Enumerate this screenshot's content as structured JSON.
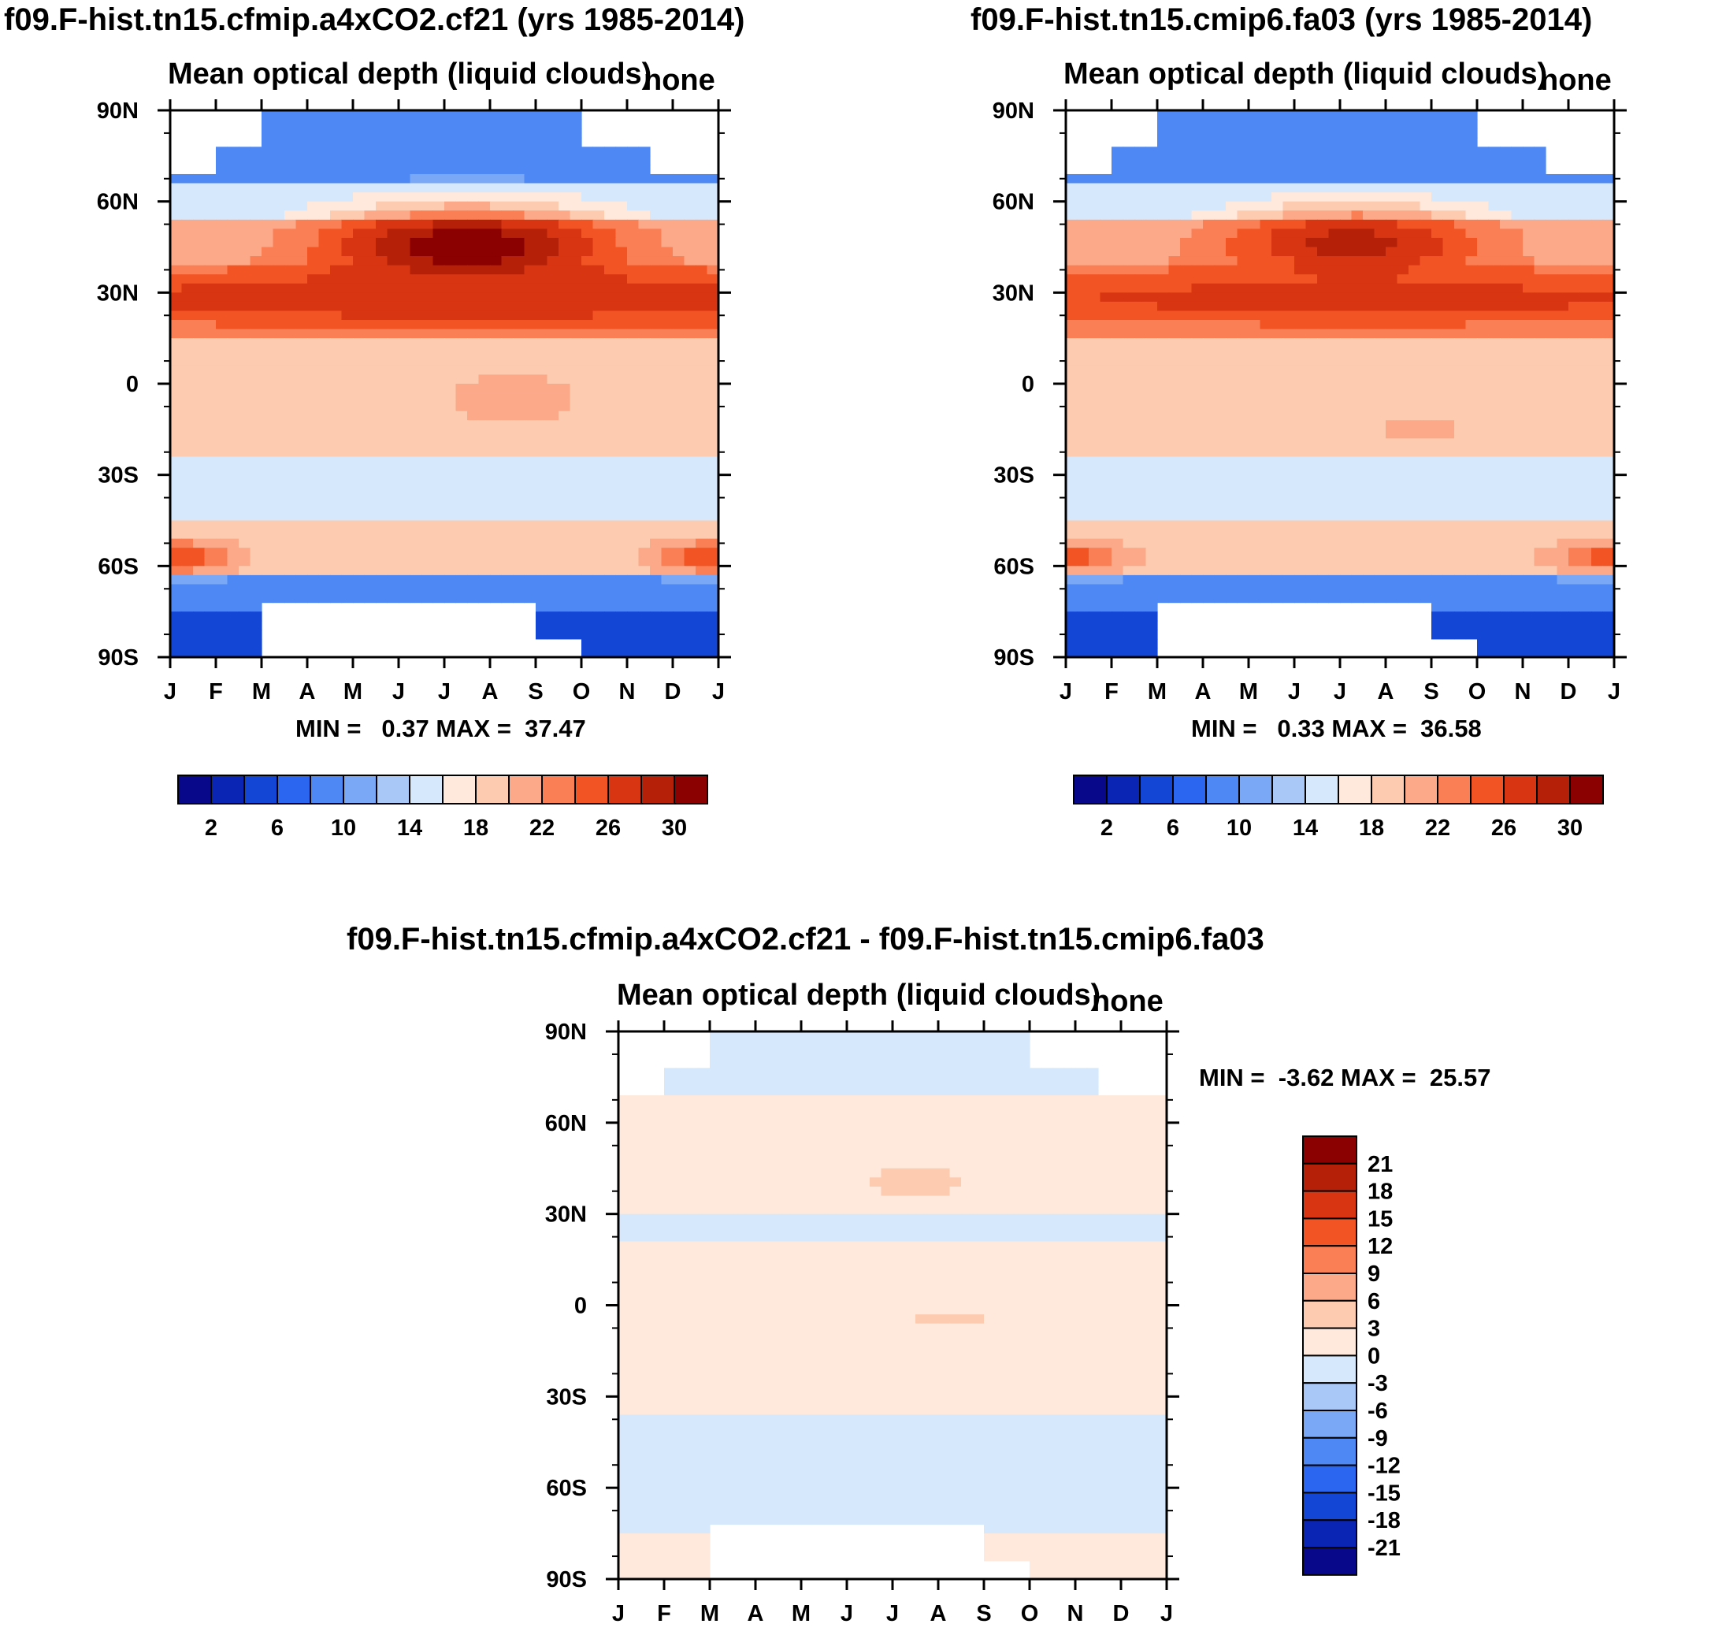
{
  "panels": [
    {
      "title": "f09.F-hist.tn15.cfmip.a4xCO2.cf21 (yrs 1985-2014)",
      "subtitle": "Mean optical depth (liquid clouds)",
      "units": "none",
      "minmax": "MIN =   0.37 MAX =  37.47"
    },
    {
      "title": "f09.F-hist.tn15.cmip6.fa03 (yrs 1985-2014)",
      "subtitle": "Mean optical depth (liquid clouds)",
      "units": "none",
      "minmax": "MIN =   0.33 MAX =  36.58"
    },
    {
      "title": "f09.F-hist.tn15.cfmip.a4xCO2.cf21 - f09.F-hist.tn15.cmip6.fa03",
      "subtitle": "Mean optical depth (liquid clouds)",
      "units": "none",
      "minmax": "MIN =  -3.62 MAX =  25.57"
    }
  ],
  "chart_data": [
    {
      "type": "heatmap",
      "title": "f09.F-hist.tn15.cfmip.a4xCO2.cf21 (yrs 1985-2014)",
      "x_ticks": [
        "J",
        "F",
        "M",
        "A",
        "M",
        "J",
        "J",
        "A",
        "S",
        "O",
        "N",
        "D",
        "J"
      ],
      "y_ticks": [
        "90N",
        "60N",
        "30N",
        "0",
        "30S",
        "60S",
        "90S"
      ],
      "levels": [
        2,
        4,
        6,
        8,
        10,
        12,
        14,
        16,
        18,
        20,
        22,
        24,
        26,
        28,
        30
      ],
      "colorbar_labels": [
        "2",
        "6",
        "10",
        "14",
        "18",
        "22",
        "26",
        "30"
      ],
      "min": 0.37,
      "max": 37.47,
      "features": [
        {
          "lat": 45,
          "month": 6.5,
          "value": 32,
          "lat_spread": 13,
          "month_spread": 3.2
        },
        {
          "lat": 28,
          "month": 6.5,
          "value": 28,
          "lat_spread": 9,
          "month_spread": 12
        },
        {
          "lat": -57,
          "month": 0,
          "value": 26,
          "lat_spread": 6,
          "month_spread": 1.6
        },
        {
          "lat": -57,
          "month": 12,
          "value": 26,
          "lat_spread": 6,
          "month_spread": 1.6
        },
        {
          "lat": -5,
          "month": 7.5,
          "value": 22,
          "lat_spread": 10,
          "month_spread": 1.6
        }
      ]
    },
    {
      "type": "heatmap",
      "title": "f09.F-hist.tn15.cmip6.fa03 (yrs 1985-2014)",
      "x_ticks": [
        "J",
        "F",
        "M",
        "A",
        "M",
        "J",
        "J",
        "A",
        "S",
        "O",
        "N",
        "D",
        "J"
      ],
      "y_ticks": [
        "90N",
        "60N",
        "30N",
        "0",
        "30S",
        "60S",
        "90S"
      ],
      "levels": [
        2,
        4,
        6,
        8,
        10,
        12,
        14,
        16,
        18,
        20,
        22,
        24,
        26,
        28,
        30
      ],
      "colorbar_labels": [
        "2",
        "6",
        "10",
        "14",
        "18",
        "22",
        "26",
        "30"
      ],
      "min": 0.33,
      "max": 36.58,
      "features": [
        {
          "lat": 46,
          "month": 6.3,
          "value": 29,
          "lat_spread": 12,
          "month_spread": 3
        },
        {
          "lat": 28,
          "month": 6.5,
          "value": 27,
          "lat_spread": 9,
          "month_spread": 12
        },
        {
          "lat": -57,
          "month": 0,
          "value": 25,
          "lat_spread": 6,
          "month_spread": 1.5
        },
        {
          "lat": -57,
          "month": 12,
          "value": 25,
          "lat_spread": 6,
          "month_spread": 1.5
        },
        {
          "lat": -15,
          "month": 7.8,
          "value": 21,
          "lat_spread": 7,
          "month_spread": 1.2
        }
      ]
    },
    {
      "type": "heatmap",
      "title": "f09.F-hist.tn15.cfmip.a4xCO2.cf21 - f09.F-hist.tn15.cmip6.fa03",
      "x_ticks": [
        "J",
        "F",
        "M",
        "A",
        "M",
        "J",
        "J",
        "A",
        "S",
        "O",
        "N",
        "D",
        "J"
      ],
      "y_ticks": [
        "90N",
        "60N",
        "30N",
        "0",
        "30S",
        "60S",
        "90S"
      ],
      "levels": [
        -21,
        -18,
        -15,
        -12,
        -9,
        -6,
        -3,
        0,
        3,
        6,
        9,
        12,
        15,
        18,
        21
      ],
      "colorbar_labels": [
        "21",
        "18",
        "15",
        "12",
        "9",
        "6",
        "3",
        "0",
        "-3",
        "-6",
        "-9",
        "-12",
        "-15",
        "-18",
        "-21"
      ],
      "min": -3.62,
      "max": 25.57,
      "features": [
        {
          "lat": 40,
          "month": 6.5,
          "value": 4,
          "lat_spread": 5,
          "month_spread": 1.0
        },
        {
          "lat": -5,
          "month": 7.2,
          "value": 4,
          "lat_spread": 2,
          "month_spread": 0.8
        }
      ]
    }
  ],
  "palette": [
    "#08088a",
    "#0a24b4",
    "#1446d6",
    "#2a66f0",
    "#4e88f4",
    "#7aa8f6",
    "#a9c8f8",
    "#d6e8fb",
    "#ffe9dc",
    "#fdcbb0",
    "#fca98a",
    "#fa7f55",
    "#f25424",
    "#d83512",
    "#b52108",
    "#8b0000"
  ]
}
